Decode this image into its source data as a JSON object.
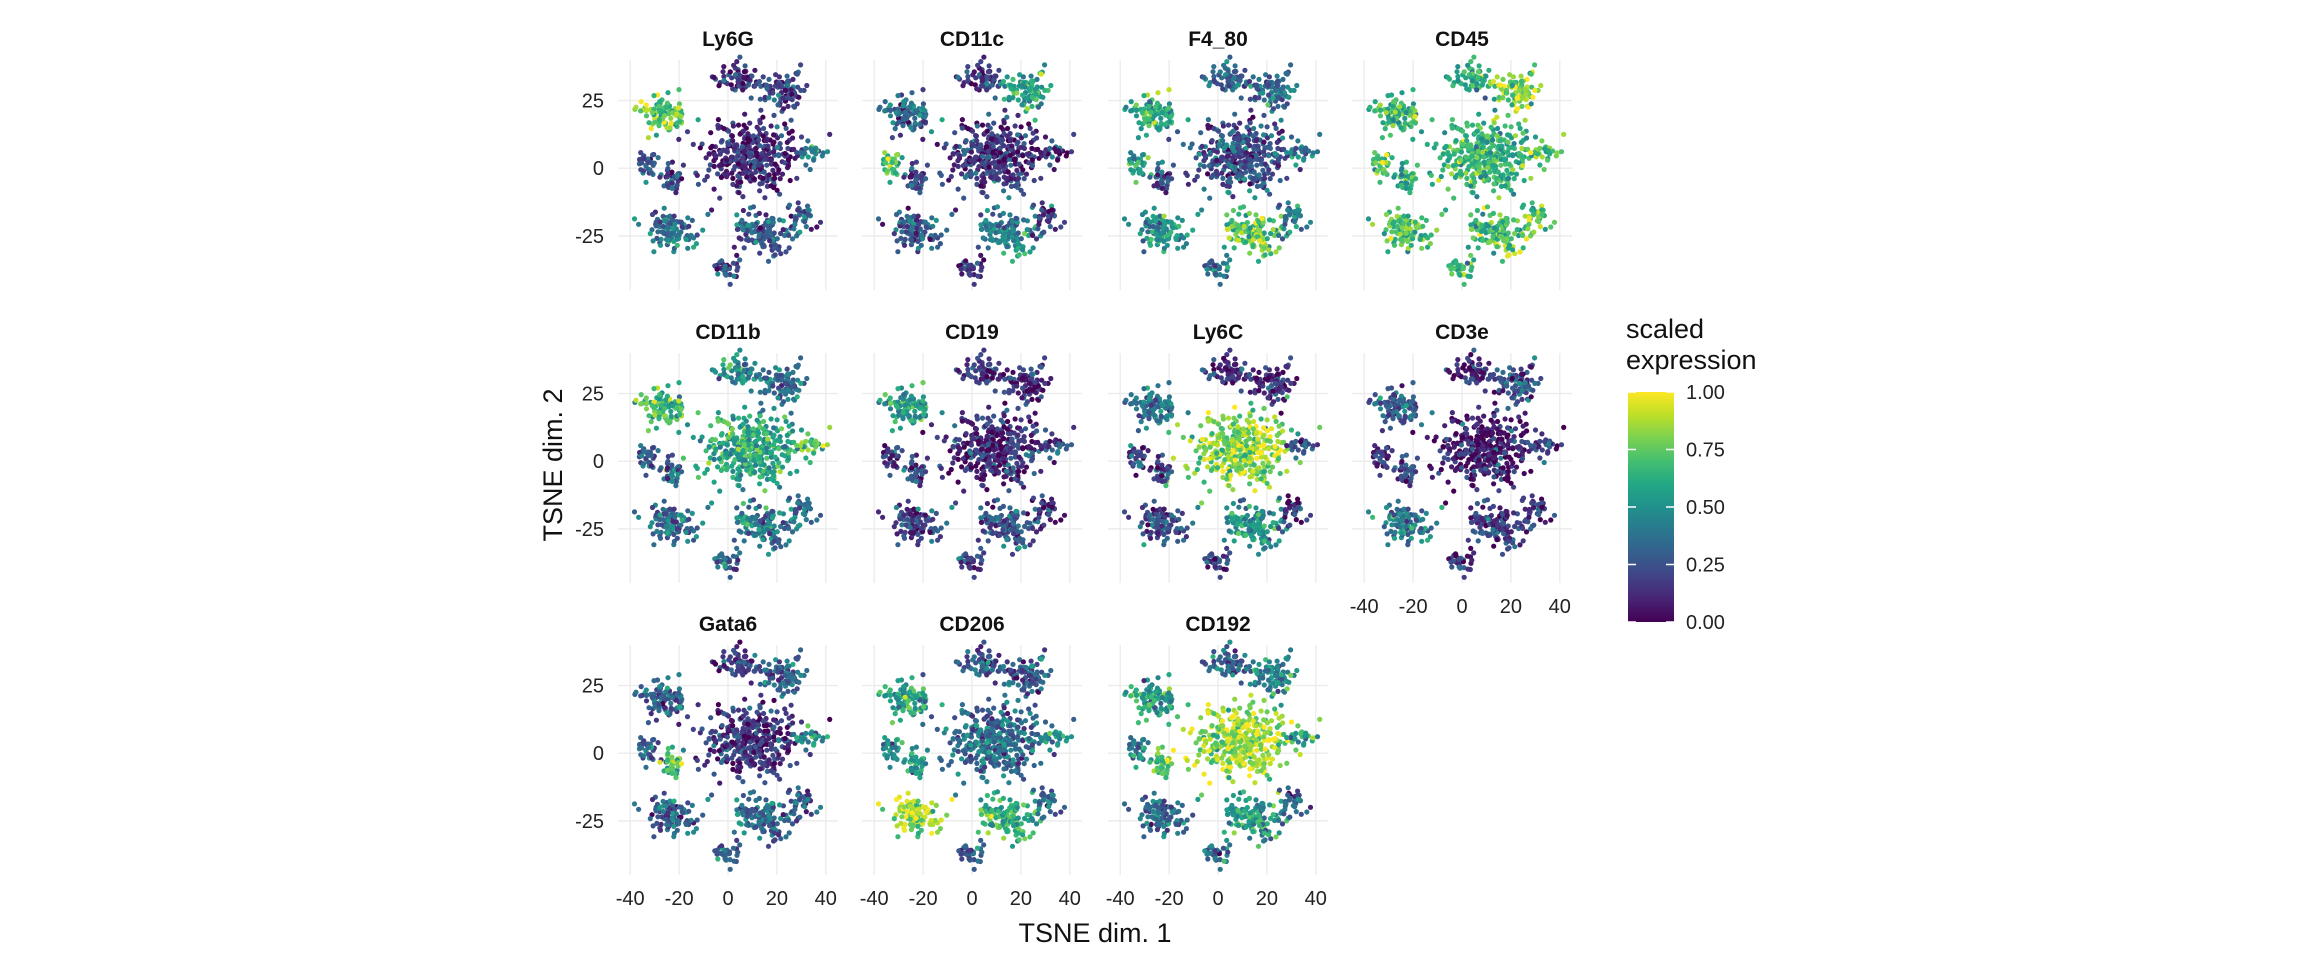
{
  "chart_data": {
    "type": "scatter",
    "layout": "facet_wrap",
    "xlabel": "TSNE dim. 1",
    "ylabel": "TSNE dim. 2",
    "xlim": [
      -45,
      45
    ],
    "ylim": [
      -45,
      40
    ],
    "x_ticks": [
      -40,
      -20,
      0,
      20,
      40
    ],
    "y_ticks": [
      -25,
      0,
      25
    ],
    "x_tick_labels": [
      "-40",
      "-20",
      "0",
      "20",
      "40"
    ],
    "y_tick_labels": [
      "-25",
      "0",
      "25"
    ],
    "grid": true,
    "legend": {
      "title_line1": "scaled",
      "title_line2": "expression",
      "placement": "right",
      "range": [
        0,
        1
      ],
      "tick_labels": [
        "1.00",
        "0.75",
        "0.50",
        "0.25",
        "0.00"
      ],
      "colormap": "viridis",
      "colors": [
        "#440154",
        "#3b528b",
        "#21918c",
        "#5ec962",
        "#fde725"
      ]
    },
    "panels": [
      {
        "name": "Ly6G",
        "clusters": [
          0.15,
          0.2,
          0.72,
          0.12,
          0.45,
          0.3,
          0.25,
          0.35,
          0.3,
          0.25,
          0.3
        ]
      },
      {
        "name": "CD11c",
        "clusters": [
          0.15,
          0.55,
          0.3,
          0.15,
          0.15,
          0.7,
          0.2,
          0.3,
          0.45,
          0.15,
          0.15
        ]
      },
      {
        "name": "F4_80",
        "clusters": [
          0.35,
          0.35,
          0.6,
          0.25,
          0.45,
          0.55,
          0.25,
          0.5,
          0.75,
          0.4,
          0.4
        ]
      },
      {
        "name": "CD45",
        "clusters": [
          0.6,
          0.8,
          0.7,
          0.65,
          0.75,
          0.7,
          0.6,
          0.7,
          0.7,
          0.65,
          0.75
        ]
      },
      {
        "name": "CD11b",
        "clusters": [
          0.45,
          0.35,
          0.65,
          0.6,
          0.75,
          0.35,
          0.3,
          0.35,
          0.4,
          0.3,
          0.35
        ]
      },
      {
        "name": "CD19",
        "clusters": [
          0.2,
          0.15,
          0.55,
          0.12,
          0.25,
          0.2,
          0.2,
          0.2,
          0.25,
          0.2,
          0.15
        ]
      },
      {
        "name": "Ly6C",
        "clusters": [
          0.15,
          0.1,
          0.4,
          0.82,
          0.25,
          0.2,
          0.2,
          0.2,
          0.5,
          0.2,
          0.15
        ]
      },
      {
        "name": "CD3e",
        "clusters": [
          0.1,
          0.25,
          0.3,
          0.08,
          0.25,
          0.15,
          0.25,
          0.4,
          0.2,
          0.2,
          0.15
        ]
      },
      {
        "name": "Gata6",
        "clusters": [
          0.2,
          0.3,
          0.3,
          0.15,
          0.5,
          0.3,
          0.7,
          0.3,
          0.35,
          0.3,
          0.3
        ]
      },
      {
        "name": "CD206",
        "clusters": [
          0.3,
          0.25,
          0.55,
          0.35,
          0.45,
          0.5,
          0.55,
          0.85,
          0.65,
          0.3,
          0.4
        ]
      },
      {
        "name": "CD192",
        "clusters": [
          0.3,
          0.45,
          0.55,
          0.85,
          0.6,
          0.45,
          0.7,
          0.35,
          0.55,
          0.35,
          0.3
        ]
      }
    ]
  }
}
